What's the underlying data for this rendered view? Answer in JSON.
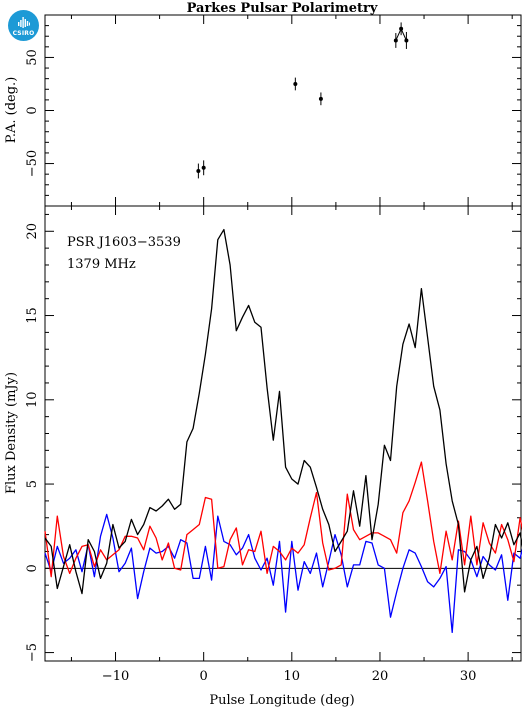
{
  "title": "Parkes Pulsar Polarimetry",
  "logo": {
    "text": "CSIRO",
    "color": "#1d9ad6"
  },
  "chart_data": [
    {
      "type": "scatter",
      "ylabel": "P.A. (deg.)",
      "xlim": [
        -18,
        36
      ],
      "ylim": [
        -90,
        90
      ],
      "yticks": [
        -50,
        0,
        50
      ],
      "points": [
        {
          "x": -0.6,
          "y": -57,
          "err": 7
        },
        {
          "x": 0.0,
          "y": -54,
          "err": 7
        },
        {
          "x": 10.4,
          "y": 25,
          "err": 6
        },
        {
          "x": 13.3,
          "y": 11,
          "err": 6
        },
        {
          "x": 21.8,
          "y": 66,
          "err": 7
        },
        {
          "x": 22.4,
          "y": 77,
          "err": 6
        },
        {
          "x": 23.0,
          "y": 66,
          "err": 8
        }
      ],
      "pa_fit": [
        [
          21.8,
          66
        ],
        [
          22.4,
          77
        ],
        [
          23.0,
          66
        ]
      ]
    },
    {
      "type": "line",
      "xlabel": "Pulse Longitude (deg)",
      "ylabel": "Flux Density (mJy)",
      "annotations": [
        "PSR J1603−3539",
        "1379 MHz"
      ],
      "xlim": [
        -18,
        36
      ],
      "ylim": [
        -5.5,
        21.5
      ],
      "xticks": [
        -10,
        0,
        10,
        20,
        30
      ],
      "yticks": [
        -5,
        0,
        5,
        10,
        15,
        20
      ],
      "x_start": -18.0,
      "x_step": 0.7,
      "series": [
        {
          "color": "#000000",
          "values": [
            1.8,
            1.3,
            -1.2,
            0.1,
            1.4,
            -0.2,
            -1.5,
            1.7,
            1.0,
            -0.6,
            0.3,
            2.6,
            1.2,
            1.6,
            2.9,
            2.0,
            2.6,
            3.6,
            3.4,
            3.7,
            4.1,
            3.5,
            3.8,
            7.5,
            8.3,
            10.4,
            12.7,
            15.4,
            19.5,
            20.1,
            18.0,
            14.1,
            14.9,
            15.6,
            14.6,
            14.3,
            10.7,
            7.6,
            10.5,
            6.0,
            5.3,
            5.0,
            6.4,
            6.0,
            4.8,
            3.5,
            2.6,
            1.0,
            1.6,
            2.2,
            4.6,
            2.5,
            5.5,
            1.7,
            3.8,
            7.3,
            6.4,
            10.8,
            13.3,
            14.5,
            13.1,
            16.6,
            13.7,
            10.8,
            9.4,
            6.2,
            4.0,
            2.6,
            -1.4,
            0.5,
            1.3,
            -0.6,
            0.6,
            2.6,
            1.8,
            2.7,
            1.4,
            2.1,
            0.0,
            2.6
          ]
        },
        {
          "color": "#ff0000",
          "values": [
            2.2,
            -0.5,
            3.1,
            0.7,
            -0.3,
            0.6,
            1.3,
            1.4,
            0.1,
            1.1,
            0.5,
            0.8,
            1.1,
            1.9,
            1.9,
            1.8,
            1.1,
            2.5,
            1.8,
            0.5,
            1.5,
            0.0,
            -0.1,
            2.0,
            2.3,
            2.6,
            4.2,
            4.1,
            0.0,
            0.1,
            1.7,
            2.4,
            0.2,
            1.1,
            1.0,
            2.2,
            -0.3,
            1.3,
            1.0,
            0.5,
            1.2,
            0.9,
            1.4,
            3.0,
            4.5,
            1.5,
            -0.1,
            0.0,
            0.2,
            4.4,
            2.3,
            1.7,
            1.9,
            2.1,
            2.1,
            1.9,
            1.7,
            0.9,
            3.3,
            4.0,
            5.1,
            6.3,
            4.0,
            1.6,
            -0.3,
            2.2,
            0.5,
            2.8,
            0.2,
            3.1,
            0.2,
            2.7,
            1.5,
            0.9,
            2.6,
            1.7,
            0.4,
            3.0,
            1.1,
            2.1
          ]
        },
        {
          "color": "#0000ff",
          "values": [
            0.9,
            -0.2,
            1.3,
            0.3,
            0.6,
            1.1,
            -0.2,
            1.4,
            -0.5,
            1.9,
            3.2,
            1.8,
            -0.2,
            0.3,
            1.2,
            -1.8,
            -0.2,
            1.2,
            0.9,
            1.0,
            1.3,
            0.6,
            1.7,
            1.5,
            -0.6,
            -0.6,
            1.3,
            -0.7,
            3.1,
            1.6,
            1.4,
            0.8,
            1.2,
            2.0,
            0.6,
            -0.1,
            0.6,
            -1.0,
            1.6,
            -2.6,
            1.6,
            -1.3,
            0.4,
            -0.3,
            0.9,
            -1.1,
            0.4,
            2.0,
            0.8,
            -1.1,
            0.2,
            0.2,
            1.6,
            1.5,
            0.2,
            0.0,
            -2.9,
            -1.4,
            0.0,
            1.1,
            0.9,
            0.1,
            -0.8,
            -1.1,
            -0.6,
            0.1,
            -3.8,
            1.1,
            1.0,
            0.5,
            -0.5,
            0.7,
            0.2,
            -0.1,
            0.8,
            -1.9,
            0.9,
            0.6,
            2.0,
            -2.0
          ]
        }
      ]
    }
  ]
}
